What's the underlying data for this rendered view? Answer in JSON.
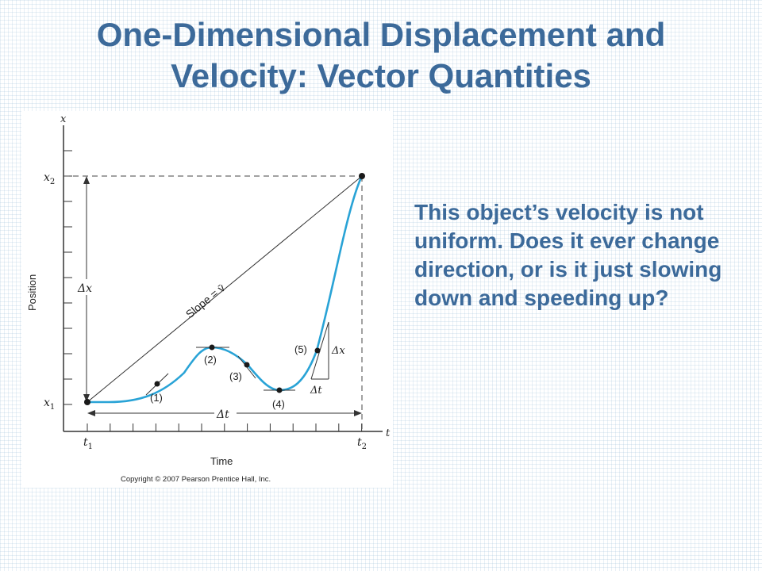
{
  "slide": {
    "title_line1": "One-Dimensional Displacement and",
    "title_line2": "Velocity: Vector Quantities",
    "body_text": "This object’s velocity is not uniform. Does it ever change direction, or is it just slowing down and speeding up?"
  },
  "diagram": {
    "x_axis_var": "t",
    "y_axis_var": "x",
    "x_axis_title": "Time",
    "y_axis_title": "Position",
    "x_label_start": "t",
    "x_label_start_sub": "1",
    "x_label_end": "t",
    "x_label_end_sub": "2",
    "y_label_low": "x",
    "y_label_low_sub": "1",
    "y_label_high": "x",
    "y_label_high_sub": "2",
    "delta_x": "Δx",
    "delta_t": "Δt",
    "slope_label": "Slope = v̄",
    "point_labels": [
      "(1)",
      "(2)",
      "(3)",
      "(4)",
      "(5)"
    ],
    "small_delta_x": "Δx",
    "small_delta_t": "Δt",
    "copyright": "Copyright © 2007 Pearson Prentice Hall, Inc.",
    "curve_color": "#29a3d6"
  }
}
